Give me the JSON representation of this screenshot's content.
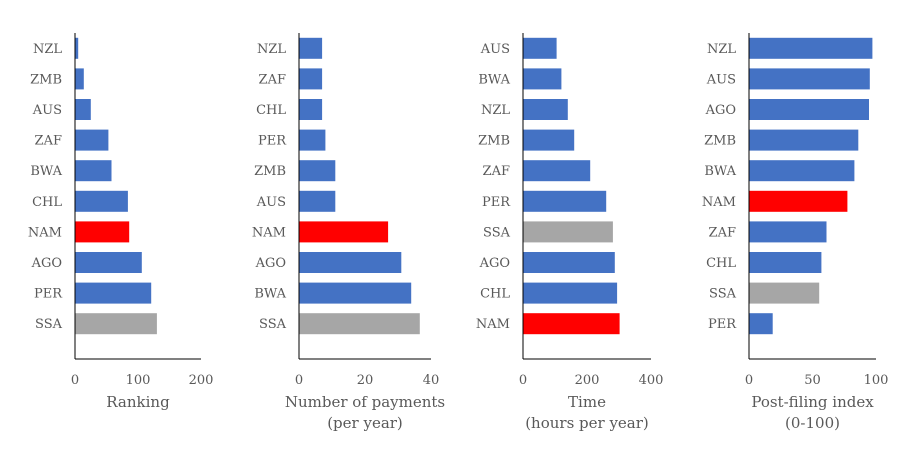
{
  "colors": {
    "default": "#4472C4",
    "highlight": "#FF0000",
    "benchmark": "#A6A6A6",
    "axis": "#000000",
    "text": "#595959"
  },
  "chart_data": [
    {
      "type": "bar",
      "orientation": "horizontal",
      "categories": [
        "NZL",
        "ZMB",
        "AUS",
        "ZAF",
        "BWA",
        "CHL",
        "NAM",
        "AGO",
        "PER",
        "SSA"
      ],
      "values": [
        5,
        14,
        25,
        53,
        58,
        84,
        86,
        106,
        121,
        130
      ],
      "highlight": [
        "default",
        "default",
        "default",
        "default",
        "default",
        "default",
        "highlight",
        "default",
        "default",
        "benchmark"
      ],
      "xlabel": [
        "Ranking"
      ],
      "xlim": [
        0,
        200
      ],
      "xticks": [
        0,
        100,
        200
      ],
      "grid": false
    },
    {
      "type": "bar",
      "orientation": "horizontal",
      "categories": [
        "NZL",
        "ZAF",
        "CHL",
        "PER",
        "ZMB",
        "AUS",
        "NAM",
        "AGO",
        "BWA",
        "SSA"
      ],
      "values": [
        7,
        7,
        7,
        8,
        11,
        11,
        27,
        31,
        34,
        36.6
      ],
      "highlight": [
        "default",
        "default",
        "default",
        "default",
        "default",
        "default",
        "highlight",
        "default",
        "default",
        "benchmark"
      ],
      "xlabel": [
        "Number of payments",
        "(per year)"
      ],
      "xlim": [
        0,
        40
      ],
      "xticks": [
        0,
        20,
        40
      ],
      "grid": false
    },
    {
      "type": "bar",
      "orientation": "horizontal",
      "categories": [
        "AUS",
        "BWA",
        "NZL",
        "ZMB",
        "ZAF",
        "PER",
        "SSA",
        "AGO",
        "CHL",
        "NAM"
      ],
      "values": [
        105,
        120,
        140,
        160,
        210,
        260,
        281,
        287,
        294,
        302
      ],
      "highlight": [
        "default",
        "default",
        "default",
        "default",
        "default",
        "default",
        "benchmark",
        "default",
        "default",
        "highlight"
      ],
      "xlabel": [
        "Time",
        "(hours per year)"
      ],
      "xlim": [
        0,
        400
      ],
      "xticks": [
        0,
        200,
        400
      ],
      "grid": false
    },
    {
      "type": "bar",
      "orientation": "horizontal",
      "categories": [
        "NZL",
        "AUS",
        "AGO",
        "ZMB",
        "BWA",
        "NAM",
        "ZAF",
        "CHL",
        "SSA",
        "PER"
      ],
      "values": [
        97.2,
        95.1,
        94.5,
        86.1,
        83,
        77.5,
        61,
        57,
        55.3,
        18.7
      ],
      "highlight": [
        "default",
        "default",
        "default",
        "default",
        "default",
        "highlight",
        "default",
        "default",
        "benchmark",
        "default"
      ],
      "xlabel": [
        "Post-filing index",
        "(0-100)"
      ],
      "xlim": [
        0,
        100
      ],
      "xticks": [
        0,
        50,
        100
      ],
      "grid": false
    }
  ]
}
